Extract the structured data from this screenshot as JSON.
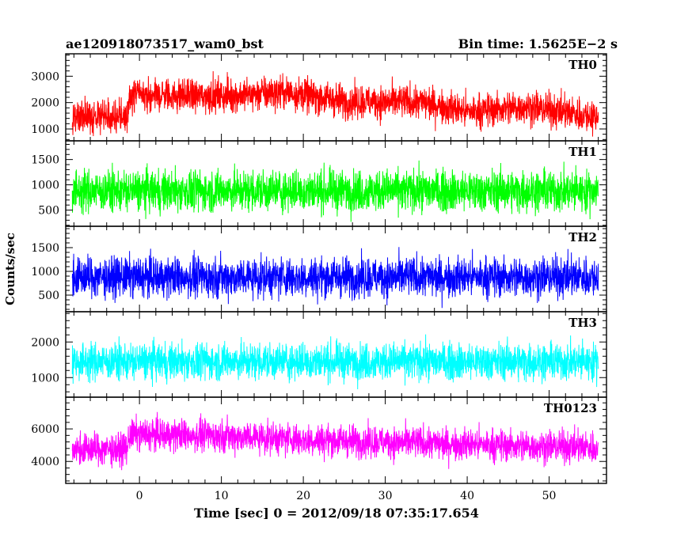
{
  "header": {
    "file_name": "ae120918073517_wam0_bst",
    "bin_time": "Bin time: 1.5625E−2 s"
  },
  "chart_data": {
    "type": "line",
    "xlabel": "Time [sec] 0 = 2012/09/18 07:35:17.654",
    "ylabel": "Counts/sec",
    "xlim": [
      -9,
      57
    ],
    "x_ticks": [
      0,
      10,
      20,
      30,
      40,
      50
    ],
    "x_tick_labels": [
      "0",
      "10",
      "20",
      "30",
      "40",
      "50"
    ],
    "data_x_range": [
      -8.2,
      56
    ],
    "grid": false,
    "panels": [
      {
        "name": "TH0",
        "color": "#ff0000",
        "ylim": [
          550,
          3850
        ],
        "y_ticks": [
          1000,
          2000,
          3000
        ],
        "y_tick_labels": [
          "1000",
          "2000",
          "3000"
        ],
        "mean_profile": [
          [
            -8.2,
            1450
          ],
          [
            -1.5,
            1450
          ],
          [
            -1.2,
            2300
          ],
          [
            10,
            2250
          ],
          [
            18,
            2400
          ],
          [
            25,
            2050
          ],
          [
            35,
            2000
          ],
          [
            40,
            1650
          ],
          [
            47,
            1850
          ],
          [
            56,
            1450
          ]
        ],
        "noise": 520,
        "peak": 3850,
        "floor": 570
      },
      {
        "name": "TH1",
        "color": "#00ff00",
        "ylim": [
          180,
          1870
        ],
        "y_ticks": [
          500,
          1000,
          1500
        ],
        "y_tick_labels": [
          "500",
          "1000",
          "1500"
        ],
        "mean_profile": [
          [
            -8.2,
            880
          ],
          [
            56,
            880
          ]
        ],
        "noise": 330,
        "peak": 1870,
        "floor": 240
      },
      {
        "name": "TH2",
        "color": "#0000ff",
        "ylim": [
          150,
          1950
        ],
        "y_ticks": [
          500,
          1000,
          1500
        ],
        "y_tick_labels": [
          "500",
          "1000",
          "1500"
        ],
        "mean_profile": [
          [
            -8.2,
            880
          ],
          [
            56,
            880
          ]
        ],
        "noise": 340,
        "peak": 1950,
        "floor": 230
      },
      {
        "name": "TH3",
        "color": "#00ffff",
        "ylim": [
          450,
          2850
        ],
        "y_ticks": [
          1000,
          2000
        ],
        "y_tick_labels": [
          "1000",
          "2000"
        ],
        "mean_profile": [
          [
            -8.2,
            1450
          ],
          [
            56,
            1450
          ]
        ],
        "noise": 420,
        "peak": 2850,
        "floor": 520
      },
      {
        "name": "TH0123",
        "color": "#ff00ff",
        "ylim": [
          2650,
          7950
        ],
        "y_ticks": [
          4000,
          6000
        ],
        "y_tick_labels": [
          "4000",
          "6000"
        ],
        "mean_profile": [
          [
            -8.2,
            4750
          ],
          [
            -1.5,
            4750
          ],
          [
            -1.2,
            5650
          ],
          [
            10,
            5600
          ],
          [
            20,
            5350
          ],
          [
            40,
            5050
          ],
          [
            56,
            4850
          ]
        ],
        "noise": 800,
        "peak": 7950,
        "floor": 2700
      }
    ]
  }
}
